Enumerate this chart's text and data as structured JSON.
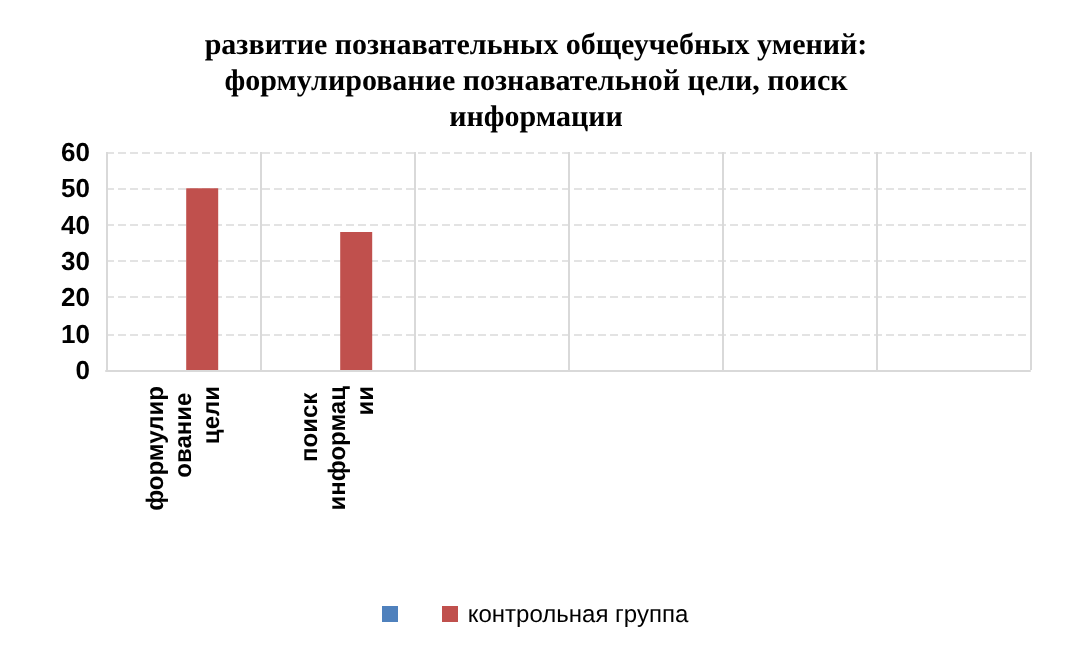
{
  "chart_data": {
    "type": "bar",
    "title": "развитие познавательных общеучебных умений: формулирование познавательной цели, поиск информации",
    "categories": [
      "формулирование цели",
      "поиск информации",
      null,
      null,
      null,
      null
    ],
    "series": [
      {
        "color": "#4f81bd",
        "values": [
          null,
          null,
          null,
          null,
          null,
          null
        ]
      },
      {
        "name": "контрольная группа",
        "color": "#c0504d",
        "values": [
          50,
          38,
          null,
          null,
          null,
          null
        ]
      }
    ],
    "ylim": [
      0,
      60
    ],
    "yticks": [
      0,
      10,
      20,
      30,
      40,
      50,
      60
    ],
    "grid": true,
    "legend": "bottom"
  }
}
